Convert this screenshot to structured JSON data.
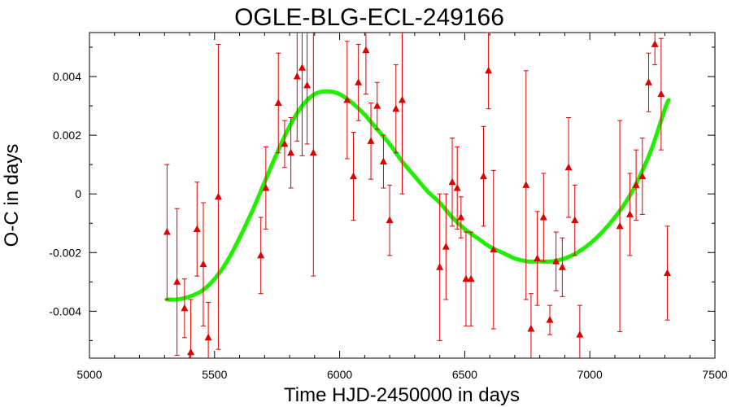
{
  "chart_data": {
    "type": "scatter",
    "title": "OGLE-BLG-ECL-249166",
    "xlabel": "Time HJD-2450000 in days",
    "ylabel": "O-C in days",
    "xlim": [
      5000,
      7500
    ],
    "ylim": [
      -0.0056,
      0.0055
    ],
    "xticks": [
      5000,
      5500,
      6000,
      6500,
      7000,
      7500
    ],
    "yticks": [
      -0.004,
      -0.002,
      0,
      0.002,
      0.004
    ],
    "ytick_labels": [
      "-0.004",
      "-0.002",
      "0",
      "0.002",
      "0.004"
    ],
    "grid": false,
    "colors": {
      "points": "#dd0000",
      "fit": "#22ee00",
      "axis": "#000000"
    },
    "series": [
      {
        "type": "scatter-errorbar",
        "points": [
          {
            "x": 5310,
            "y": -0.0013,
            "err": 0.0023
          },
          {
            "x": 5350,
            "y": -0.003,
            "err": 0.0025
          },
          {
            "x": 5380,
            "y": -0.0039,
            "err": 0.001
          },
          {
            "x": 5405,
            "y": -0.0054,
            "err": 0.0018
          },
          {
            "x": 5430,
            "y": -0.0012,
            "err": 0.0016
          },
          {
            "x": 5455,
            "y": -0.0024,
            "err": 0.0021
          },
          {
            "x": 5475,
            "y": -0.0049,
            "err": 0.0012
          },
          {
            "x": 5515,
            "y": -0.0001,
            "err": 0.0052
          },
          {
            "x": 5685,
            "y": -0.0021,
            "err": 0.0013
          },
          {
            "x": 5705,
            "y": 0.0002,
            "err": 0.0014
          },
          {
            "x": 5755,
            "y": 0.0031,
            "err": 0.0017
          },
          {
            "x": 5780,
            "y": 0.0017,
            "err": 0.0008
          },
          {
            "x": 5805,
            "y": 0.0014,
            "err": 0.0012
          },
          {
            "x": 5830,
            "y": 0.004,
            "err": 0.0022
          },
          {
            "x": 5850,
            "y": 0.0043,
            "err": 0.003
          },
          {
            "x": 5870,
            "y": 0.0037,
            "err": 0.002
          },
          {
            "x": 5895,
            "y": 0.0014,
            "err": 0.0042
          },
          {
            "x": 6030,
            "y": 0.0032,
            "err": 0.002
          },
          {
            "x": 6055,
            "y": 0.0006,
            "err": 0.0015
          },
          {
            "x": 6075,
            "y": 0.0038,
            "err": 0.0013
          },
          {
            "x": 6105,
            "y": 0.0049,
            "err": 0.0015
          },
          {
            "x": 6125,
            "y": 0.0018,
            "err": 0.0013
          },
          {
            "x": 6150,
            "y": 0.003,
            "err": 0.0008
          },
          {
            "x": 6175,
            "y": 0.0011,
            "err": 0.0009
          },
          {
            "x": 6200,
            "y": -0.0009,
            "err": 0.0012
          },
          {
            "x": 6225,
            "y": 0.0029,
            "err": 0.0015
          },
          {
            "x": 6250,
            "y": 0.0032,
            "err": 0.0032
          },
          {
            "x": 6400,
            "y": -0.0025,
            "err": 0.0025
          },
          {
            "x": 6425,
            "y": -0.0018,
            "err": 0.0018
          },
          {
            "x": 6450,
            "y": 0.0004,
            "err": 0.0015
          },
          {
            "x": 6470,
            "y": 0.0002,
            "err": 0.0014
          },
          {
            "x": 6485,
            "y": -0.0008,
            "err": 0.0007
          },
          {
            "x": 6505,
            "y": -0.0029,
            "err": 0.0016
          },
          {
            "x": 6525,
            "y": -0.0029,
            "err": 0.0016
          },
          {
            "x": 6575,
            "y": 0.0006,
            "err": 0.0017
          },
          {
            "x": 6595,
            "y": 0.0042,
            "err": 0.0013
          },
          {
            "x": 6615,
            "y": -0.0019,
            "err": 0.0027
          },
          {
            "x": 6745,
            "y": 0.0003,
            "err": 0.0039
          },
          {
            "x": 6765,
            "y": -0.0046,
            "err": 0.0012
          },
          {
            "x": 6790,
            "y": -0.0022,
            "err": 0.0016
          },
          {
            "x": 6815,
            "y": -0.0008,
            "err": 0.0015
          },
          {
            "x": 6840,
            "y": -0.0043,
            "err": 0.0005
          },
          {
            "x": 6865,
            "y": -0.0023,
            "err": 0.001
          },
          {
            "x": 6890,
            "y": -0.0025,
            "err": 0.001
          },
          {
            "x": 6915,
            "y": 0.0009,
            "err": 0.0017
          },
          {
            "x": 6940,
            "y": -0.0009,
            "err": 0.0012
          },
          {
            "x": 6960,
            "y": -0.0048,
            "err": 0.001
          },
          {
            "x": 7120,
            "y": -0.0011,
            "err": 0.0036
          },
          {
            "x": 7160,
            "y": -0.0007,
            "err": 0.0014
          },
          {
            "x": 7185,
            "y": 0.0003,
            "err": 0.0012
          },
          {
            "x": 7210,
            "y": 0.0006,
            "err": 0.0013
          },
          {
            "x": 7235,
            "y": 0.0038,
            "err": 0.001
          },
          {
            "x": 7260,
            "y": 0.0051,
            "err": 0.0007
          },
          {
            "x": 7285,
            "y": 0.0034,
            "err": 0.0019
          },
          {
            "x": 7310,
            "y": -0.0027,
            "err": 0.0016
          }
        ]
      },
      {
        "type": "fit-curve",
        "x": [
          5310,
          5350,
          5400,
          5450,
          5500,
          5550,
          5600,
          5650,
          5700,
          5750,
          5800,
          5850,
          5900,
          5950,
          6000,
          6050,
          6100,
          6150,
          6200,
          6250,
          6300,
          6350,
          6400,
          6450,
          6500,
          6550,
          6600,
          6650,
          6700,
          6750,
          6800,
          6850,
          6900,
          6950,
          7000,
          7050,
          7100,
          7150,
          7200,
          7250,
          7300,
          7315
        ],
        "y": [
          -0.0036,
          -0.0036,
          -0.0035,
          -0.0033,
          -0.0029,
          -0.0023,
          -0.0015,
          -0.0006,
          0.0004,
          0.0014,
          0.0023,
          0.003,
          0.0034,
          0.0035,
          0.0034,
          0.0031,
          0.0027,
          0.0022,
          0.0017,
          0.0011,
          0.0006,
          0.0001,
          -0.0003,
          -0.0008,
          -0.0012,
          -0.0015,
          -0.0018,
          -0.002,
          -0.0022,
          -0.0023,
          -0.0023,
          -0.0023,
          -0.0022,
          -0.002,
          -0.0017,
          -0.0013,
          -0.0008,
          -0.0002,
          0.0006,
          0.0016,
          0.0029,
          0.0032
        ]
      }
    ]
  }
}
